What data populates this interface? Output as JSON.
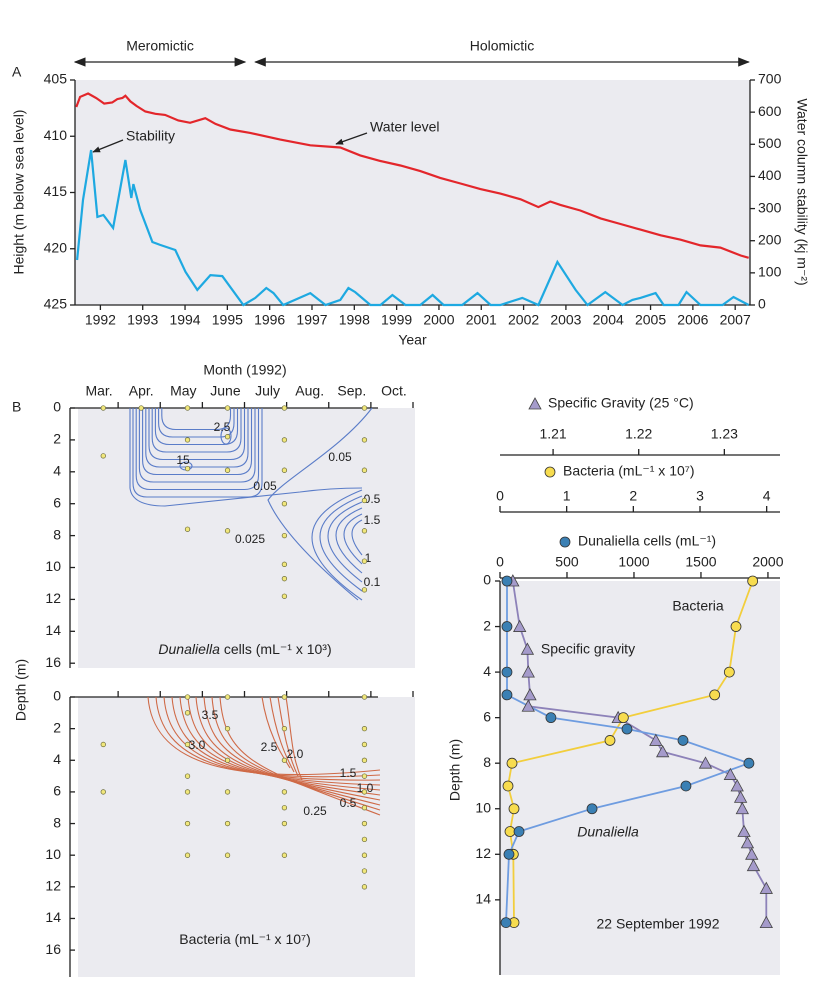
{
  "chart_data": [
    {
      "type": "line",
      "panel": "A",
      "x_label": "Year",
      "y_label": "Height (m below sea level)",
      "y2_label": "Water column stability (kj m⁻²)",
      "phases": [
        {
          "label": "Meromictic",
          "x": [
            1991.9,
            1995.92
          ]
        },
        {
          "label": "Holomictic",
          "x": [
            1996.16,
            2007.82
          ]
        }
      ],
      "xlim": [
        1991.9,
        2007.85
      ],
      "xticks": [
        {
          "value": 1992.5,
          "label": "1992"
        },
        {
          "value": 1993.5,
          "label": "1993"
        },
        {
          "value": 1994.5,
          "label": "1994"
        },
        {
          "value": 1995.5,
          "label": "1995"
        },
        {
          "value": 1996.5,
          "label": "1996"
        },
        {
          "value": 1997.5,
          "label": "1997"
        },
        {
          "value": 1998.5,
          "label": "1998"
        },
        {
          "value": 1999.5,
          "label": "1999"
        },
        {
          "value": 2000.5,
          "label": "2000"
        },
        {
          "value": 2001.5,
          "label": "2001"
        },
        {
          "value": 2002.5,
          "label": "2002"
        },
        {
          "value": 2003.5,
          "label": "2003"
        },
        {
          "value": 2004.5,
          "label": "2004"
        },
        {
          "value": 2005.5,
          "label": "2005"
        },
        {
          "value": 2006.5,
          "label": "2006"
        },
        {
          "value": 2007.5,
          "label": "2007"
        }
      ],
      "ylim": [
        405,
        425
      ],
      "y_inverted": true,
      "yticks": [
        405,
        410,
        415,
        420,
        425
      ],
      "y2lim": [
        0,
        700
      ],
      "y2ticks": [
        0,
        100,
        200,
        300,
        400,
        500,
        600,
        700
      ],
      "series": [
        {
          "name": "Water level",
          "color": "#e3262b",
          "x": [
            1991.93,
            1992.02,
            1992.21,
            1992.4,
            1992.59,
            1992.78,
            1992.9,
            1993.02,
            1993.09,
            1993.21,
            1993.35,
            1993.56,
            1993.8,
            1994.03,
            1994.34,
            1994.62,
            1994.98,
            1995.22,
            1995.57,
            1996.04,
            1996.75,
            1997.46,
            1998.17,
            1998.64,
            1999.12,
            1999.59,
            2000.06,
            2000.53,
            2001.01,
            2001.48,
            2001.95,
            2002.43,
            2002.85,
            2003.13,
            2003.37,
            2003.84,
            2004.32,
            2004.79,
            2005.26,
            2005.74,
            2006.21,
            2006.68,
            2007.15,
            2007.63,
            2007.82
          ],
          "values": [
            407.4,
            406.5,
            406.2,
            406.6,
            407.1,
            407.0,
            406.7,
            406.6,
            406.4,
            406.9,
            407.3,
            407.8,
            408.0,
            408.1,
            408.6,
            408.8,
            408.4,
            408.9,
            409.4,
            409.7,
            410.3,
            410.8,
            411.0,
            411.7,
            412.2,
            412.6,
            413.1,
            413.7,
            414.2,
            414.7,
            415.1,
            415.6,
            416.3,
            415.8,
            416.1,
            416.6,
            417.3,
            417.8,
            418.3,
            418.8,
            419.2,
            419.7,
            419.9,
            420.6,
            420.8
          ]
        },
        {
          "name": "Stability",
          "color": "#1ea9e1",
          "axis": "y2",
          "x": [
            1991.95,
            1992.09,
            1992.28,
            1992.43,
            1992.57,
            1992.8,
            1993.09,
            1993.23,
            1993.28,
            1993.44,
            1993.73,
            1993.91,
            1994.27,
            1994.51,
            1994.79,
            1995.1,
            1995.38,
            1995.88,
            1996.16,
            1996.42,
            1996.59,
            1996.82,
            1997.46,
            1997.82,
            1998.17,
            1998.36,
            1998.52,
            1998.88,
            1999.12,
            1999.4,
            1999.71,
            2000.06,
            2000.35,
            2000.61,
            2001.05,
            2001.41,
            2001.72,
            2001.95,
            2002.47,
            2002.85,
            2003.3,
            2003.73,
            2004.01,
            2004.43,
            2004.84,
            2005.07,
            2005.26,
            2005.62,
            2005.81,
            2006.16,
            2006.35,
            2006.68,
            2007.2,
            2007.46,
            2007.82
          ],
          "values": [
            140,
            327,
            482,
            274,
            280,
            240,
            451,
            333,
            376,
            296,
            196,
            187,
            171,
            103,
            47,
            93,
            90,
            0,
            22,
            53,
            37,
            0,
            37,
            0,
            16,
            53,
            40,
            0,
            0,
            31,
            0,
            0,
            31,
            0,
            0,
            37,
            0,
            0,
            22,
            0,
            134,
            47,
            0,
            40,
            0,
            16,
            22,
            37,
            0,
            0,
            40,
            0,
            0,
            25,
            0
          ]
        }
      ]
    },
    {
      "type": "contour",
      "panel": "B",
      "x_label": "Month (1992)",
      "categories": [
        "Mar.",
        "Apr.",
        "May",
        "June",
        "July",
        "Aug.",
        "Sep.",
        "Oct."
      ],
      "xlim": [
        3,
        11
      ],
      "y_label": "Depth (m)",
      "ylim": [
        0,
        16.3
      ],
      "y_inverted": true,
      "yticks": [
        0,
        2,
        4,
        6,
        8,
        10,
        12,
        14,
        16
      ],
      "title": [
        "Dunaliella",
        "cells (mL⁻¹ x 10³)"
      ],
      "color": "#5a7cc8",
      "samples": {
        "x": [
          3.6,
          3.6,
          4.5,
          5.6,
          5.6,
          5.6,
          5.6,
          6.55,
          6.55,
          6.55,
          6.55,
          7.9,
          7.9,
          7.9,
          7.9,
          7.9,
          7.9,
          7.9,
          7.9,
          9.8,
          9.8,
          9.8,
          9.8,
          9.8,
          9.8,
          9.8
        ],
        "depth": [
          0,
          3,
          0,
          0,
          2,
          3.8,
          7.6,
          0,
          1.8,
          3.9,
          7.7,
          0,
          2,
          3.9,
          6,
          8,
          9.8,
          10.7,
          11.8,
          0,
          2,
          3.9,
          5.8,
          7.7,
          9.6,
          11.4
        ]
      },
      "contour_labels": [
        "2.5",
        "15",
        "0.05",
        "0.05",
        "0.025",
        "0.5",
        "1.5",
        "1",
        "0.1"
      ]
    },
    {
      "type": "contour",
      "title": [
        "Bacteria (mL⁻¹ x 10⁷)"
      ],
      "color": "#cf6a47",
      "xlim": [
        3,
        11
      ],
      "ylim": [
        0,
        17.7
      ],
      "y_inverted": true,
      "yticks": [
        0,
        2,
        4,
        6,
        8,
        10,
        12,
        14,
        16
      ],
      "samples": {
        "x": [
          3.6,
          3.6,
          5.6,
          5.6,
          5.6,
          5.6,
          5.6,
          5.6,
          5.6,
          6.55,
          6.55,
          6.55,
          6.55,
          6.55,
          6.55,
          7.9,
          7.9,
          7.9,
          7.9,
          7.9,
          7.9,
          7.9,
          9.8,
          9.8,
          9.8,
          9.8,
          9.8,
          9.8,
          9.8,
          9.8,
          9.8,
          9.8,
          9.8,
          9.8
        ],
        "depth": [
          3,
          6,
          0,
          1,
          3,
          5,
          6,
          8,
          10,
          0,
          2,
          4,
          6,
          8,
          10,
          0,
          2,
          4,
          6,
          7,
          8,
          10,
          0,
          2,
          3,
          4,
          5,
          6,
          7,
          8,
          9,
          10,
          11,
          12
        ]
      },
      "contour_labels": [
        "3.5",
        "3.0",
        "2.5",
        "2.0",
        "1.5",
        "1.0",
        "0.5",
        "0.25"
      ]
    },
    {
      "type": "profile",
      "title": "22 September 1992",
      "y_label": "Depth (m)",
      "ylim": [
        0,
        17.3
      ],
      "y_inverted": true,
      "yticks": [
        0,
        2,
        4,
        6,
        8,
        10,
        12,
        14
      ],
      "series": [
        {
          "name": "Specific Gravity (25 °C)",
          "label": "Specific gravity",
          "color": "#a59bcb",
          "line_color": "#8d82b9",
          "marker": "triangle",
          "xlim": [
            1.2038,
            1.2365
          ],
          "xticks": [
            1.21,
            1.22,
            1.23
          ],
          "values": [
            1.2053,
            1.2061,
            1.207,
            1.2071,
            1.2073,
            1.2071,
            1.2176,
            1.222,
            1.2228,
            1.2278,
            1.2307,
            1.2315,
            1.2319,
            1.2321,
            1.2323,
            1.2327,
            1.2332,
            1.2334,
            1.2349,
            1.2349
          ],
          "depth": [
            0,
            2,
            3,
            4,
            5,
            5.5,
            6,
            7,
            7.5,
            8,
            8.5,
            9,
            9.5,
            10,
            11,
            11.5,
            12,
            12.5,
            13.5,
            15
          ]
        },
        {
          "name": "Bacteria (mL⁻¹ x 10⁷)",
          "label": "Bacteria",
          "color": "#f7dc4f",
          "line_color": "#f2ce3c",
          "marker": "circle",
          "xlim": [
            0,
            4.2
          ],
          "xticks": [
            0,
            1,
            2,
            3,
            4
          ],
          "values": [
            3.79,
            3.54,
            3.44,
            3.22,
            1.85,
            1.65,
            0.18,
            0.12,
            0.21,
            0.15,
            0.2,
            0.21
          ],
          "depth": [
            0,
            2,
            4,
            5,
            6,
            7,
            8,
            9,
            10,
            11,
            12,
            15
          ]
        },
        {
          "name": "Dunaliella cells (mL⁻¹)",
          "label": "Dunaliella",
          "color": "#3b80b4",
          "line_color": "#6e9ce0",
          "marker": "circle",
          "xlim": [
            0,
            2090
          ],
          "xticks": [
            0,
            500,
            1000,
            1500,
            2000
          ],
          "values": [
            52,
            52,
            52,
            52,
            380,
            948,
            1366,
            1858,
            1388,
            687,
            142,
            67,
            45
          ],
          "depth": [
            0,
            2,
            4,
            5,
            6,
            6.5,
            7,
            8,
            9,
            10,
            11,
            12,
            15
          ]
        }
      ]
    }
  ]
}
